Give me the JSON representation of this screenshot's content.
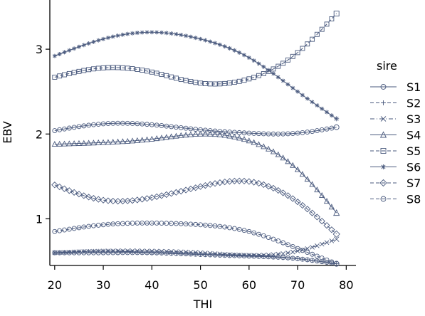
{
  "chart_data": {
    "type": "line",
    "xlabel": "THI",
    "ylabel": "EBV",
    "xlim": [
      19,
      82
    ],
    "ylim": [
      0.45,
      3.58
    ],
    "xticks": [
      20,
      30,
      40,
      50,
      60,
      70,
      80
    ],
    "yticks": [
      1,
      2,
      3
    ],
    "legend": {
      "title": "sire",
      "placement": "right"
    },
    "line_color": "#4a5a7e",
    "x": [
      20,
      30,
      40,
      50,
      60,
      70,
      78
    ],
    "series": [
      {
        "name": "S1",
        "marker": "circle",
        "dash": "solid",
        "values": [
          0.6,
          0.6,
          0.6,
          0.58,
          0.56,
          0.53,
          0.47
        ]
      },
      {
        "name": "S2",
        "marker": "plus",
        "dash": "dash",
        "values": [
          0.6,
          0.62,
          0.6,
          0.58,
          0.57,
          0.53,
          0.47
        ]
      },
      {
        "name": "S3",
        "marker": "x",
        "dash": "dashdot",
        "values": [
          0.6,
          0.62,
          0.62,
          0.6,
          0.57,
          0.62,
          0.76
        ]
      },
      {
        "name": "S4",
        "marker": "triangle",
        "dash": "solid",
        "values": [
          1.88,
          1.9,
          1.94,
          2.0,
          1.92,
          1.58,
          1.07
        ]
      },
      {
        "name": "S5",
        "marker": "square",
        "dash": "dash",
        "values": [
          2.67,
          2.78,
          2.73,
          2.6,
          2.65,
          2.96,
          3.42
        ]
      },
      {
        "name": "S6",
        "marker": "star",
        "dash": "solid",
        "values": [
          2.92,
          3.12,
          3.2,
          3.12,
          2.9,
          2.5,
          2.18
        ]
      },
      {
        "name": "S7",
        "marker": "diamond",
        "dash": "dash",
        "values": [
          1.4,
          1.22,
          1.25,
          1.38,
          1.44,
          1.2,
          0.82
        ]
      },
      {
        "name": "S8",
        "marker": "circle",
        "dash": "dash",
        "values": [
          0.85,
          0.93,
          0.95,
          0.93,
          0.85,
          0.65,
          0.47
        ]
      },
      {
        "name": "",
        "marker": "circle",
        "dash": "solid",
        "values": [
          2.04,
          2.12,
          2.11,
          2.05,
          2.01,
          2.01,
          2.08
        ]
      }
    ]
  }
}
